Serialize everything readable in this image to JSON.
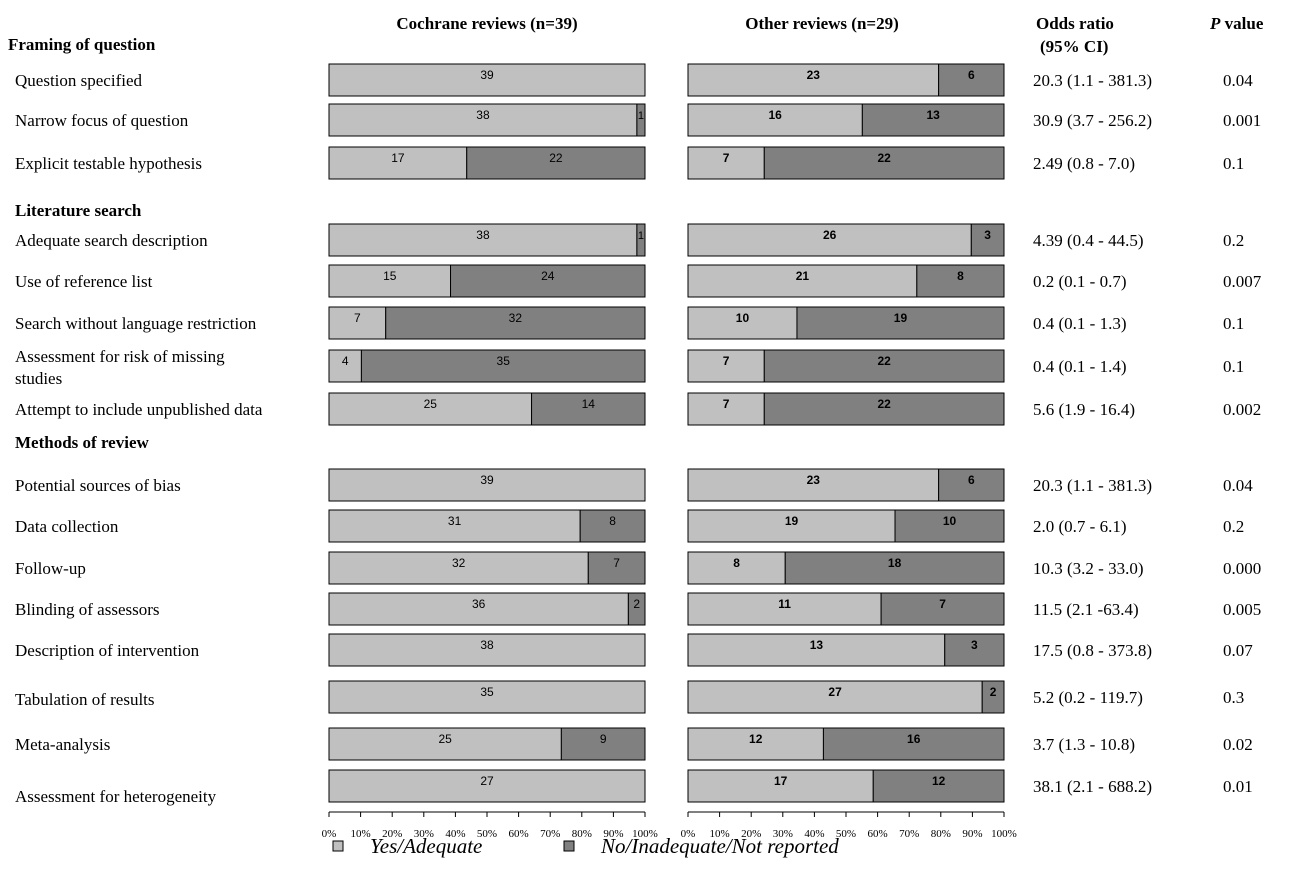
{
  "headers": {
    "cochrane": "Cochrane reviews (n=39)",
    "other": "Other reviews (n=29)",
    "odds_ratio_line1": "Odds ratio",
    "odds_ratio_line2": "(95% CI)",
    "p_value_p": "P",
    "p_value_rest": " value"
  },
  "sections": [
    {
      "label": "Framing of question"
    },
    {
      "label": "Literature search"
    },
    {
      "label": "Methods of review"
    }
  ],
  "legend": {
    "yes_label": "Yes/Adequate",
    "no_label": "No/Inadequate/Not reported"
  },
  "colors": {
    "yes": "#c0c0c0",
    "no": "#808080",
    "border": "#000000"
  },
  "chart_data": {
    "type": "bar",
    "orientation": "horizontal",
    "stacked": "100%",
    "series": [
      {
        "name": "Yes/Adequate"
      },
      {
        "name": "No/Inadequate/Not reported"
      }
    ],
    "x_ticks": [
      "0%",
      "10%",
      "20%",
      "30%",
      "40%",
      "50%",
      "60%",
      "70%",
      "80%",
      "90%",
      "100%"
    ],
    "xlim": [
      0,
      100
    ],
    "rows": [
      {
        "label": "Question specified",
        "section": 0,
        "cochrane": [
          39,
          0
        ],
        "other": [
          23,
          6
        ],
        "or": "20.3 (1.1 - 381.3)",
        "p": "0.04"
      },
      {
        "label": "Narrow focus of question",
        "section": 0,
        "cochrane": [
          38,
          1
        ],
        "other": [
          16,
          13
        ],
        "or": "30.9 (3.7 - 256.2)",
        "p": "0.001"
      },
      {
        "label": "Explicit testable hypothesis",
        "section": 0,
        "cochrane": [
          17,
          22
        ],
        "other": [
          7,
          22
        ],
        "or": "2.49 (0.8 - 7.0)",
        "p": "0.1"
      },
      {
        "label": "Adequate search description",
        "section": 1,
        "cochrane": [
          38,
          1
        ],
        "other": [
          26,
          3
        ],
        "or": "4.39 (0.4 - 44.5)",
        "p": "0.2"
      },
      {
        "label": "Use of reference list",
        "section": 1,
        "cochrane": [
          15,
          24
        ],
        "other": [
          21,
          8
        ],
        "or": "0.2 (0.1 - 0.7)",
        "p": "0.007"
      },
      {
        "label": "Search without language restriction",
        "section": 1,
        "cochrane": [
          7,
          32
        ],
        "other": [
          10,
          19
        ],
        "or": "0.4 (0.1 - 1.3)",
        "p": "0.1"
      },
      {
        "label": "Assessment for risk of missing studies",
        "section": 1,
        "cochrane": [
          4,
          35
        ],
        "other": [
          7,
          22
        ],
        "or": "0.4 (0.1 - 1.4)",
        "p": "0.1"
      },
      {
        "label": "Attempt to include unpublished data",
        "section": 1,
        "cochrane": [
          25,
          14
        ],
        "other": [
          7,
          22
        ],
        "or": "5.6 (1.9 - 16.4)",
        "p": "0.002"
      },
      {
        "label": "Potential sources of bias",
        "section": 2,
        "cochrane": [
          39,
          0
        ],
        "other": [
          23,
          6
        ],
        "or": "20.3 (1.1 - 381.3)",
        "p": "0.04"
      },
      {
        "label": "Data collection",
        "section": 2,
        "cochrane": [
          31,
          8
        ],
        "other": [
          19,
          10
        ],
        "or": "2.0 (0.7 - 6.1)",
        "p": "0.2"
      },
      {
        "label": "Follow-up",
        "section": 2,
        "cochrane": [
          32,
          7
        ],
        "other": [
          8,
          18
        ],
        "or": "10.3 (3.2 - 33.0)",
        "p": "0.000"
      },
      {
        "label": "Blinding of assessors",
        "section": 2,
        "cochrane": [
          36,
          2
        ],
        "other": [
          11,
          7
        ],
        "or": "11.5 (2.1 -63.4)",
        "p": "0.005"
      },
      {
        "label": "Description of intervention",
        "section": 2,
        "cochrane": [
          38,
          0
        ],
        "other": [
          13,
          3
        ],
        "or": "17.5 (0.8 - 373.8)",
        "p": "0.07"
      },
      {
        "label": "Tabulation of results",
        "section": 2,
        "cochrane": [
          35,
          0
        ],
        "other": [
          27,
          2
        ],
        "or": "5.2 (0.2 - 119.7)",
        "p": "0.3"
      },
      {
        "label": "Meta-analysis",
        "section": 2,
        "cochrane": [
          25,
          9
        ],
        "other": [
          12,
          16
        ],
        "or": "3.7 (1.3 - 10.8)",
        "p": "0.02"
      },
      {
        "label": "Assessment for heterogeneity",
        "section": 2,
        "cochrane": [
          27,
          0
        ],
        "other": [
          17,
          12
        ],
        "or": "38.1 (2.1 - 688.2)",
        "p": "0.01"
      }
    ]
  }
}
